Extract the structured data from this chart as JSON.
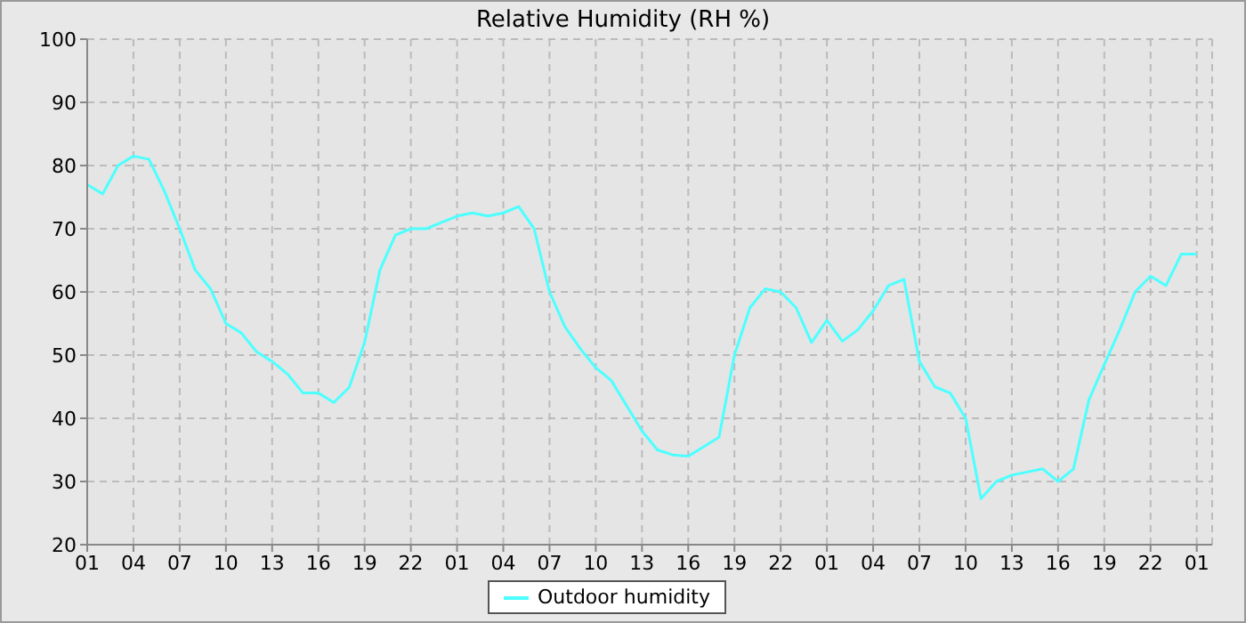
{
  "chart_data": {
    "type": "line",
    "title": "Relative Humidity (RH %)",
    "categories": [
      "01",
      null,
      null,
      "04",
      null,
      null,
      "07",
      null,
      null,
      "10",
      null,
      null,
      "13",
      null,
      null,
      "16",
      null,
      null,
      "19",
      null,
      null,
      "22",
      null,
      null,
      "01",
      null,
      null,
      "04",
      null,
      null,
      "07",
      null,
      null,
      "10",
      null,
      null,
      "13",
      null,
      null,
      "16",
      null,
      null,
      "19",
      null,
      null,
      "22",
      null,
      null,
      "01",
      null,
      null,
      "04",
      null,
      null,
      "07",
      null,
      null,
      "10",
      null,
      null,
      "13",
      null,
      null,
      "16",
      null,
      null,
      "19",
      null,
      null,
      "22",
      null,
      null,
      "01",
      null
    ],
    "series": [
      {
        "name": "Outdoor humidity",
        "color": "#4dffff",
        "values": [
          77,
          75.5,
          80,
          81.5,
          81,
          76,
          70,
          63.5,
          60.5,
          55,
          53.5,
          50.5,
          49,
          47,
          44,
          44,
          42.5,
          44.9,
          52,
          63.5,
          69,
          70,
          70,
          71,
          72,
          72.5,
          72,
          72.5,
          73.5,
          70,
          60,
          54.5,
          51,
          48,
          46,
          42,
          38,
          35,
          34.2,
          34,
          35.5,
          37,
          50,
          57.5,
          60.5,
          60,
          57.5,
          52,
          55.5,
          52.2,
          54,
          57,
          61,
          62,
          49,
          45,
          44,
          40,
          27.3,
          30,
          31,
          31.5,
          32,
          30,
          32,
          42.9,
          48.5,
          54,
          60,
          62.5,
          61,
          66,
          66,
          null
        ]
      }
    ],
    "ylim": [
      20,
      100
    ],
    "yticks": [
      20,
      30,
      40,
      50,
      60,
      70,
      80,
      90,
      100
    ],
    "grid": true,
    "legend": "bottom",
    "marker": "none",
    "line_style": "solid"
  }
}
